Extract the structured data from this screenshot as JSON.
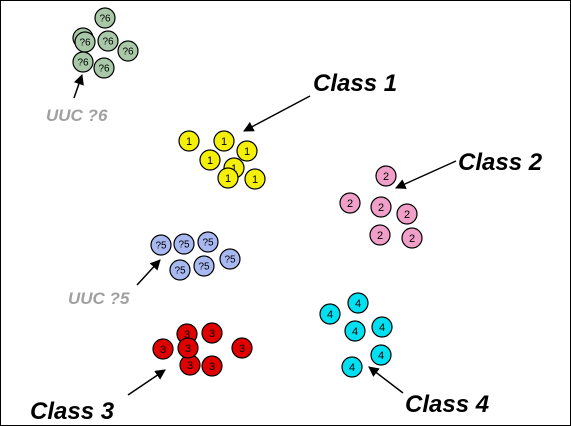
{
  "colors": {
    "class1": "#f5f00a",
    "class2": "#f0a0c8",
    "class3": "#e00000",
    "class4": "#00e0f0",
    "uuc5": "#a8b8f0",
    "uuc6": "#a8c8a8",
    "dot_stroke": "#000000",
    "class_label": "#000000",
    "uuc_label": "#a0a0a0"
  },
  "clusters": [
    {
      "id": "class1",
      "mark": "1",
      "color_key": "class1",
      "count": 7,
      "label": "Class 1",
      "label_kind": "class"
    },
    {
      "id": "class2",
      "mark": "2",
      "color_key": "class2",
      "count": 6,
      "label": "Class 2",
      "label_kind": "class"
    },
    {
      "id": "class3",
      "mark": "3",
      "color_key": "class3",
      "count": 7,
      "label": "Class 3",
      "label_kind": "class"
    },
    {
      "id": "class4",
      "mark": "4",
      "color_key": "class4",
      "count": 6,
      "label": "Class 4",
      "label_kind": "class"
    },
    {
      "id": "uuc5",
      "mark": "?5",
      "color_key": "uuc5",
      "count": 6,
      "label": "UUC ?5",
      "label_kind": "uuc"
    },
    {
      "id": "uuc6",
      "mark": "?6",
      "color_key": "uuc6",
      "count": 7,
      "label": "UUC ?6",
      "label_kind": "uuc"
    }
  ]
}
